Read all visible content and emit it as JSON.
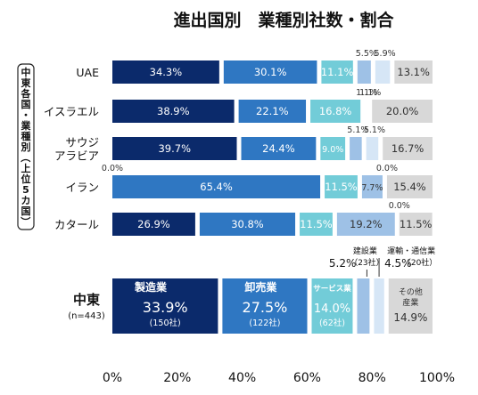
{
  "chart_data": {
    "type": "bar",
    "stacked": true,
    "orientation": "horizontal",
    "title": "進出国別　業種別社数・割合",
    "side_label": "中東各国・業種別（上位5カ国）",
    "xlim": [
      0,
      100
    ],
    "x_ticks": [
      "0%",
      "20%",
      "40%",
      "60%",
      "80%",
      "100%"
    ],
    "colors": {
      "manufacturing": "#0b2a6b",
      "wholesale": "#2f77c2",
      "services": "#72ccd8",
      "construction": "#9ec1e6",
      "transport": "#d6e6f6",
      "other": "#d8d8d8"
    },
    "categories": [
      "UAE",
      "イスラエル",
      "サウジアラビア",
      "イラン",
      "カタール"
    ],
    "category_lines": [
      [
        "UAE"
      ],
      [
        "イスラエル"
      ],
      [
        "サウジ",
        "アラビア"
      ],
      [
        "イラン"
      ],
      [
        "カタール"
      ]
    ],
    "series": [
      {
        "values": [
          34.3,
          38.9,
          39.7,
          0.0,
          26.9
        ],
        "labels": [
          "34.3%",
          "38.9%",
          "39.7%",
          "0.0%",
          "26.9%"
        ]
      },
      {
        "values": [
          30.1,
          22.1,
          24.4,
          65.4,
          30.8
        ],
        "labels": [
          "30.1%",
          "22.1%",
          "24.4%",
          "65.4%",
          "30.8%"
        ]
      },
      {
        "values": [
          11.1,
          16.8,
          9.0,
          11.5,
          11.5
        ],
        "labels": [
          "11.1%",
          "16.8%",
          "9.0%",
          "11.5%",
          "11.5%"
        ]
      },
      {
        "values": [
          5.5,
          1.1,
          5.1,
          7.7,
          19.2
        ],
        "labels": [
          "5.5%",
          "1.1%",
          "5.1%",
          "7.7%",
          "19.2%"
        ]
      },
      {
        "values": [
          5.9,
          1.1,
          5.1,
          0.0,
          0.0
        ],
        "labels": [
          "5.9%",
          "1.1%",
          "5.1%",
          "0.0%",
          "0.0%"
        ]
      },
      {
        "values": [
          13.1,
          20.0,
          16.7,
          15.4,
          11.5
        ],
        "labels": [
          "13.1%",
          "20.0%",
          "16.7%",
          "15.4%",
          "11.5%"
        ]
      }
    ],
    "total": {
      "label": "中東",
      "sublabel": "(n=443)",
      "values": [
        33.9,
        27.5,
        14.0,
        5.2,
        4.5,
        14.9
      ],
      "segment_names": [
        "製造業",
        "卸売業",
        "サービス業",
        "建設業",
        "運輸・通信業",
        "その他\n産業"
      ],
      "segment_pcts": [
        "33.9%",
        "27.5%",
        "14.0%",
        "5.2%",
        "4.5%",
        "14.9%"
      ],
      "segment_counts": [
        "(150社)",
        "(122社)",
        "(62社)",
        "（23社）",
        "（20社）",
        ""
      ]
    }
  }
}
